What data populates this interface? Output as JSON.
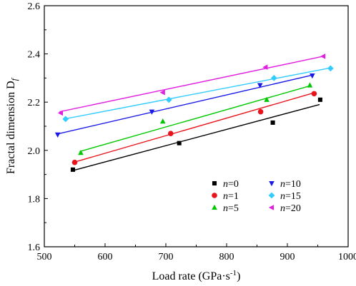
{
  "chart_data": {
    "type": "scatter",
    "xlabel": "Load rate (GPa·s",
    "xlabel_sup": "-1",
    "xlabel_end": ")",
    "ylabel": "Fractal dimension D",
    "ylabel_sub": "f",
    "xlim": [
      500,
      1000
    ],
    "ylim": [
      1.6,
      2.6
    ],
    "xticks": [
      500,
      600,
      700,
      800,
      900,
      1000
    ],
    "yticks": [
      1.6,
      1.8,
      2.0,
      2.2,
      2.4,
      2.6
    ],
    "grid": false,
    "legend": "lower-right",
    "series": [
      {
        "name": "n=0",
        "n_label": "n",
        "n_value": "=0",
        "marker": "square",
        "color": "#000000",
        "x": [
          547,
          722,
          876,
          954
        ],
        "y": [
          1.92,
          2.03,
          2.115,
          2.21
        ],
        "fit": [
          [
            545,
            1.915
          ],
          [
            953,
            2.19
          ]
        ]
      },
      {
        "name": "n=1",
        "n_label": "n",
        "n_value": "=1",
        "marker": "circle",
        "color": "#e8141c",
        "x": [
          550,
          708,
          856,
          944
        ],
        "y": [
          1.95,
          2.07,
          2.16,
          2.235
        ],
        "fit": [
          [
            548,
            1.95
          ],
          [
            943,
            2.238
          ]
        ]
      },
      {
        "name": "n=5",
        "n_label": "n",
        "n_value": "=5",
        "marker": "triangle-up",
        "color": "#00c800",
        "x": [
          560,
          695,
          866,
          937
        ],
        "y": [
          1.99,
          2.12,
          2.21,
          2.27
        ],
        "fit": [
          [
            558,
            1.995
          ],
          [
            938,
            2.268
          ]
        ]
      },
      {
        "name": "n=10",
        "n_label": "n",
        "n_value": "=10",
        "marker": "triangle-down",
        "color": "#1a1ae6",
        "x": [
          522,
          677,
          855,
          941
        ],
        "y": [
          2.065,
          2.16,
          2.27,
          2.31
        ],
        "fit": [
          [
            520,
            2.067
          ],
          [
            941,
            2.312
          ]
        ]
      },
      {
        "name": "n=15",
        "n_label": "n",
        "n_value": "=15",
        "marker": "diamond",
        "color": "#33ccff",
        "x": [
          535,
          705,
          878,
          971
        ],
        "y": [
          2.13,
          2.21,
          2.3,
          2.34
        ],
        "fit": [
          [
            533,
            2.13
          ],
          [
            971,
            2.342
          ]
        ]
      },
      {
        "name": "n=20",
        "n_label": "n",
        "n_value": "=20",
        "marker": "triangle-left",
        "color": "#e020e0",
        "x": [
          527,
          695,
          864,
          959
        ],
        "y": [
          2.155,
          2.24,
          2.345,
          2.39
        ],
        "fit": [
          [
            525,
            2.16
          ],
          [
            959,
            2.39
          ]
        ]
      }
    ]
  }
}
